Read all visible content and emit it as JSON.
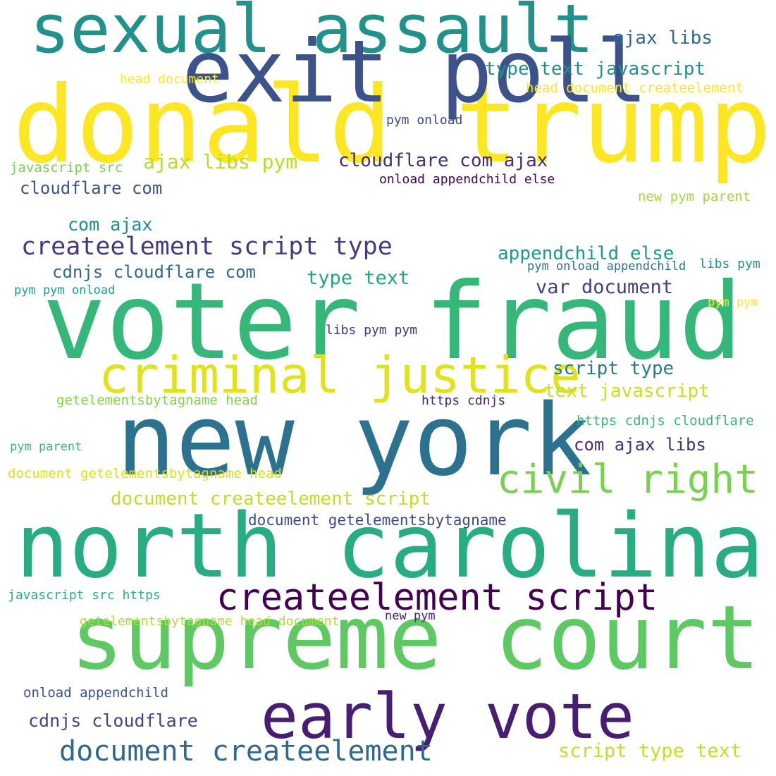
{
  "words": [
    {
      "text": "sexual assault",
      "color": "#21918c"
    },
    {
      "text": "donald trump",
      "color": "#fde725"
    },
    {
      "text": "exit poll",
      "color": "#3b528b"
    },
    {
      "text": "voter fraud",
      "color": "#35b779"
    },
    {
      "text": "criminal justice",
      "color": "#e0e31a"
    },
    {
      "text": "new york",
      "color": "#2c728e"
    },
    {
      "text": "civil right",
      "color": "#7ad151"
    },
    {
      "text": "north carolina",
      "color": "#27ad81"
    },
    {
      "text": "createelement script",
      "color": "#440154"
    },
    {
      "text": "supreme court",
      "color": "#5ec962"
    },
    {
      "text": "early vote",
      "color": "#471e71"
    },
    {
      "text": "document createelement",
      "color": "#31688e"
    },
    {
      "text": "createelement script type",
      "color": "#443983"
    },
    {
      "text": "ajax libs",
      "color": "#31688e"
    },
    {
      "text": "type text javascript",
      "color": "#21918c"
    },
    {
      "text": "head document",
      "color": "#fde725"
    },
    {
      "text": "head document createelement",
      "color": "#fde725"
    },
    {
      "text": "pym onload",
      "color": "#3e4a89"
    },
    {
      "text": "cloudflare com ajax",
      "color": "#472d7b"
    },
    {
      "text": "ajax libs pym",
      "color": "#b5de2b"
    },
    {
      "text": "javascript src",
      "color": "#7ad151"
    },
    {
      "text": "onload appendchild else",
      "color": "#440154"
    },
    {
      "text": "cloudflare com",
      "color": "#3b528b"
    },
    {
      "text": "new pym parent",
      "color": "#a0da39"
    },
    {
      "text": "com ajax",
      "color": "#218e8d"
    },
    {
      "text": "appendchild else",
      "color": "#1f998a"
    },
    {
      "text": "pym onload appendchild",
      "color": "#2e6f8e"
    },
    {
      "text": "libs pym",
      "color": "#21918c"
    },
    {
      "text": "cdnjs cloudflare com",
      "color": "#31688e"
    },
    {
      "text": "type text",
      "color": "#22a785"
    },
    {
      "text": "pym pym onload",
      "color": "#1f9a8a"
    },
    {
      "text": "var document",
      "color": "#424086"
    },
    {
      "text": "pym pym",
      "color": "#fde725"
    },
    {
      "text": "libs pym pym",
      "color": "#46327e"
    },
    {
      "text": "script type",
      "color": "#2a788e"
    },
    {
      "text": "text javascript",
      "color": "#c8e020"
    },
    {
      "text": "getelementsbytagname head",
      "color": "#84d44b"
    },
    {
      "text": "https cdnjs",
      "color": "#482374"
    },
    {
      "text": "https cdnjs cloudflare",
      "color": "#37b878"
    },
    {
      "text": "pym parent",
      "color": "#38b977"
    },
    {
      "text": "com ajax libs",
      "color": "#472c7a"
    },
    {
      "text": "document getelementsbytagname head",
      "color": "#d8e219"
    },
    {
      "text": "document createelement script",
      "color": "#bddf26"
    },
    {
      "text": "document getelementsbytagname",
      "color": "#3e4989"
    },
    {
      "text": "javascript src https",
      "color": "#29af7f"
    },
    {
      "text": "getelementsbytagname head document",
      "color": "#b0dd2f"
    },
    {
      "text": "new pym",
      "color": "#482475"
    },
    {
      "text": "onload appendchild",
      "color": "#3b528b"
    },
    {
      "text": "cdnjs cloudflare",
      "color": "#414487"
    },
    {
      "text": "script type text",
      "color": "#c2df23"
    }
  ]
}
